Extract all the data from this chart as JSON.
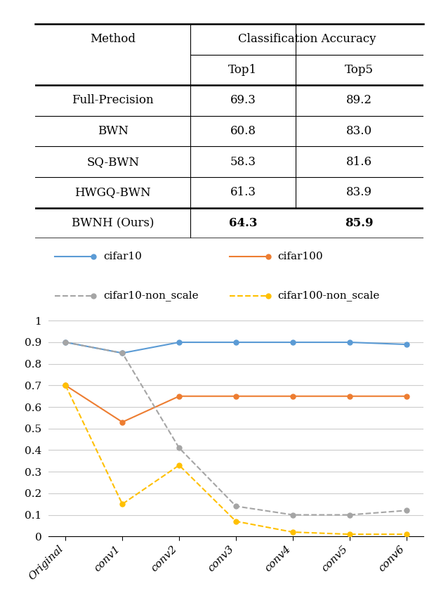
{
  "table": {
    "methods": [
      "Full-Precision",
      "BWN",
      "SQ-BWN",
      "HWGQ-BWN",
      "BWNH (Ours)"
    ],
    "top1": [
      "69.3",
      "60.8",
      "58.3",
      "61.3",
      "64.3"
    ],
    "top5": [
      "89.2",
      "83.0",
      "81.6",
      "83.9",
      "85.9"
    ],
    "bold_row": 4
  },
  "plot": {
    "x_labels": [
      "Original",
      "conv1",
      "conv2",
      "conv3",
      "conv4",
      "conv5",
      "conv6"
    ],
    "cifar10": [
      0.9,
      0.85,
      0.9,
      0.9,
      0.9,
      0.9,
      0.89
    ],
    "cifar100": [
      0.7,
      0.53,
      0.65,
      0.65,
      0.65,
      0.65,
      0.65
    ],
    "cifar10_non_scale": [
      0.9,
      0.85,
      0.41,
      0.14,
      0.1,
      0.1,
      0.12
    ],
    "cifar100_non_scale": [
      0.7,
      0.15,
      0.33,
      0.07,
      0.02,
      0.01,
      0.01
    ],
    "cifar10_color": "#5B9BD5",
    "cifar100_color": "#ED7D31",
    "cifar10_ns_color": "#A5A5A5",
    "cifar100_ns_color": "#FFC000",
    "ylim": [
      0,
      1.05
    ],
    "yticks": [
      0,
      0.1,
      0.2,
      0.3,
      0.4,
      0.5,
      0.6,
      0.7,
      0.8,
      0.9,
      1
    ],
    "ytick_labels": [
      "0",
      "0.1",
      "0.2",
      "0.3",
      "0.4",
      "0.5",
      "0.6",
      "0.7",
      "0.8",
      "0.9",
      "1"
    ]
  },
  "legend": {
    "cifar10_label": "cifar10",
    "cifar100_label": "cifar100",
    "cifar10_ns_label": "cifar10-non_scale",
    "cifar100_ns_label": "cifar100-non_scale"
  },
  "line_width": 1.5,
  "marker_size": 5,
  "fontsize_table": 12,
  "fontsize_axis": 11,
  "fontsize_legend": 11,
  "bg_color": "#ffffff",
  "grid_color": "#CCCCCC"
}
